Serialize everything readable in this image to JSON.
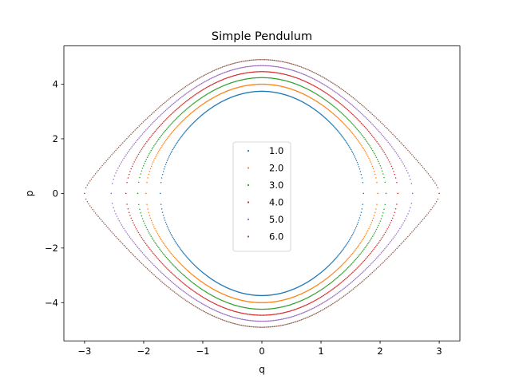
{
  "chart_data": {
    "type": "scatter",
    "title": "Simple Pendulum",
    "xlabel": "q",
    "ylabel": "p",
    "xlim": [
      -3.35,
      3.35
    ],
    "ylim": [
      -5.4,
      5.4
    ],
    "xticks": [
      -3,
      -2,
      -1,
      0,
      1,
      2,
      3
    ],
    "xtick_labels": [
      "−3",
      "−2",
      "−1",
      "0",
      "1",
      "2",
      "3"
    ],
    "yticks": [
      -4,
      -2,
      0,
      2,
      4
    ],
    "ytick_labels": [
      "−4",
      "−2",
      "0",
      "2",
      "4"
    ],
    "grid": false,
    "legend_position": "center",
    "series": [
      {
        "name": "1.0",
        "color": "#1f77b4",
        "q_max": 1.72,
        "p_max": 3.74
      },
      {
        "name": "2.0",
        "color": "#ff7f0e",
        "q_max": 1.96,
        "p_max": 4.0
      },
      {
        "name": "3.0",
        "color": "#2ca02c",
        "q_max": 2.1,
        "p_max": 4.24
      },
      {
        "name": "4.0",
        "color": "#d62728",
        "q_max": 2.3,
        "p_max": 4.46
      },
      {
        "name": "5.0",
        "color": "#9467bd",
        "q_max": 2.55,
        "p_max": 4.68
      },
      {
        "name": "6.0",
        "color": "#8c564b",
        "q_max": 3.0,
        "p_max": 4.9
      }
    ]
  }
}
